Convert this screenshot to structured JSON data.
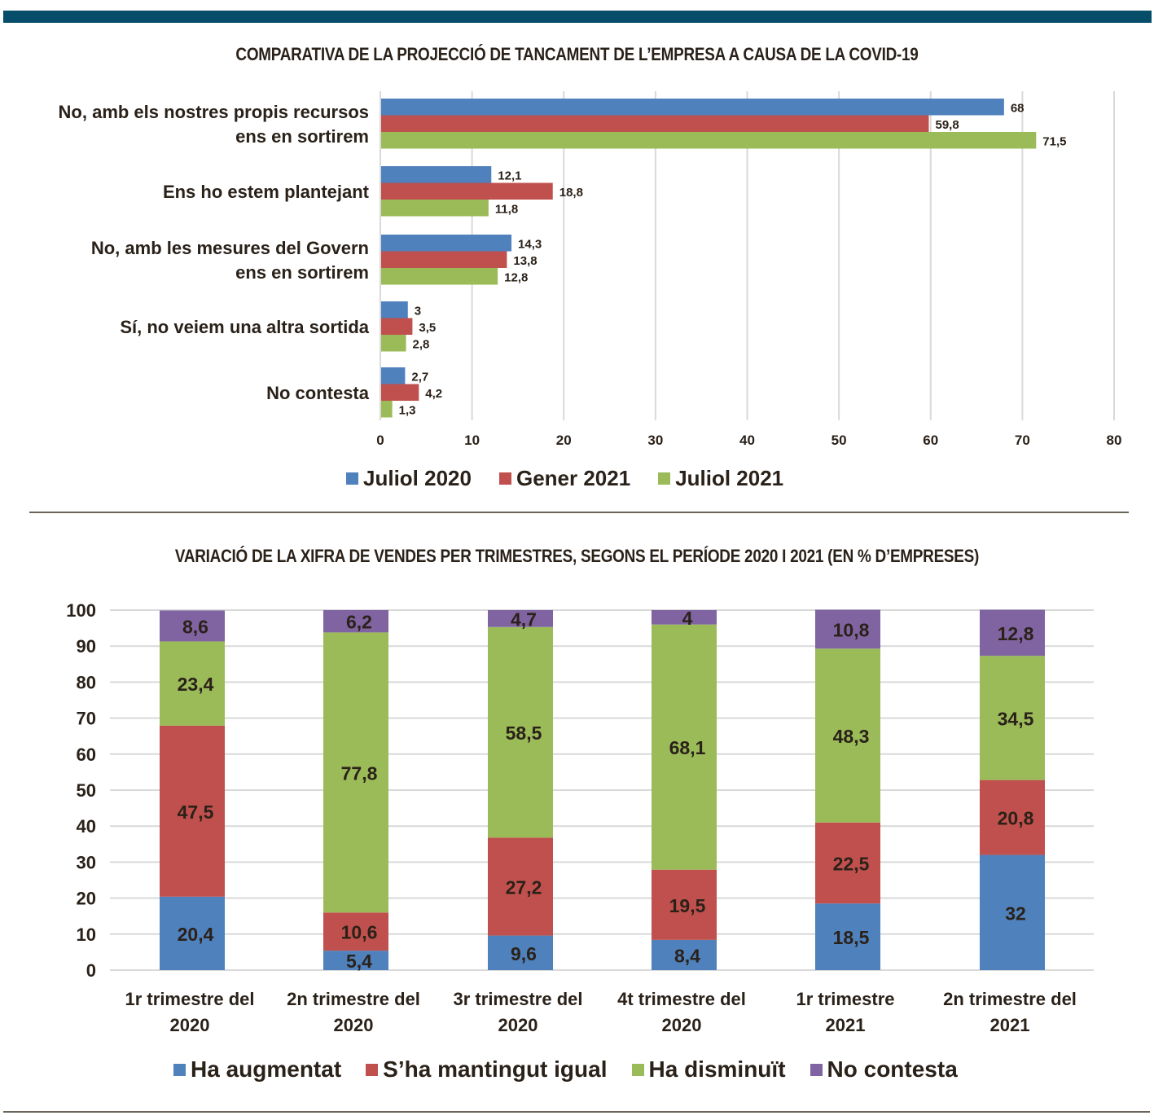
{
  "colors": {
    "header_bar": "#054d68",
    "blue": "#4f81bd",
    "red": "#c0504d",
    "green": "#9bbb59",
    "purple": "#8064a2",
    "grid": "#d9d9d9",
    "text": "#2a2119"
  },
  "chart_data": [
    {
      "type": "bar",
      "orientation": "horizontal",
      "title": "COMPARATIVA DE LA PROJECCIÓ DE TANCAMENT DE L’EMPRESA A CAUSA DE LA COVID-19",
      "categories": [
        [
          "No, amb els nostres propis recursos",
          "ens en sortirem"
        ],
        [
          "Ens ho estem plantejant"
        ],
        [
          "No, amb les mesures del Govern",
          "ens en sortirem"
        ],
        [
          "Sí, no veiem una altra sortida"
        ],
        [
          "No contesta"
        ]
      ],
      "series": [
        {
          "name": "Juliol 2020",
          "color": "#4f81bd",
          "values": [
            68,
            12.1,
            14.3,
            3,
            2.7
          ],
          "labels": [
            "68",
            "12,1",
            "14,3",
            "3",
            "2,7"
          ]
        },
        {
          "name": "Gener 2021",
          "color": "#c0504d",
          "values": [
            59.8,
            18.8,
            13.8,
            3.5,
            4.2
          ],
          "labels": [
            "59,8",
            "18,8",
            "13,8",
            "3,5",
            "4,2"
          ]
        },
        {
          "name": "Juliol 2021",
          "color": "#9bbb59",
          "values": [
            71.5,
            11.8,
            12.8,
            2.8,
            1.3
          ],
          "labels": [
            "71,5",
            "11,8",
            "12,8",
            "2,8",
            "1,3"
          ]
        }
      ],
      "xlim": [
        0,
        80
      ],
      "xticks": [
        "0",
        "10",
        "20",
        "30",
        "40",
        "50",
        "60",
        "70",
        "80"
      ],
      "grid": true,
      "legend_position": "bottom",
      "xlabel": "",
      "ylabel": ""
    },
    {
      "type": "bar",
      "stacked": true,
      "orientation": "vertical",
      "title": "VARIACIÓ DE LA XIFRA DE VENDES PER TRIMESTRES, SEGONS EL PERÍODE 2020 I 2021 (EN % D’EMPRESES)",
      "categories": [
        [
          "1r trimestre del",
          "2020"
        ],
        [
          "2n trimestre del",
          "2020"
        ],
        [
          "3r trimestre del",
          "2020"
        ],
        [
          "4t trimestre del",
          "2020"
        ],
        [
          "1r trimestre",
          "2021"
        ],
        [
          "2n trimestre del",
          "2021"
        ]
      ],
      "series": [
        {
          "name": "Ha augmentat",
          "color": "#4f81bd",
          "values": [
            20.4,
            5.4,
            9.6,
            8.4,
            18.5,
            32
          ],
          "labels": [
            "20,4",
            "5,4",
            "9,6",
            "8,4",
            "18,5",
            "32"
          ]
        },
        {
          "name": "S’ha mantingut igual",
          "color": "#c0504d",
          "values": [
            47.5,
            10.6,
            27.2,
            19.5,
            22.5,
            20.8
          ],
          "labels": [
            "47,5",
            "10,6",
            "27,2",
            "19,5",
            "22,5",
            "20,8"
          ]
        },
        {
          "name": "Ha disminuït",
          "color": "#9bbb59",
          "values": [
            23.4,
            77.8,
            58.5,
            68.1,
            48.3,
            34.5
          ],
          "labels": [
            "23,4",
            "77,8",
            "58,5",
            "68,1",
            "48,3",
            "34,5"
          ]
        },
        {
          "name": "No contesta",
          "color": "#8064a2",
          "values": [
            8.6,
            6.2,
            4.7,
            4,
            10.8,
            12.8
          ],
          "labels": [
            "8,6",
            "6,2",
            "4,7",
            "4",
            "10,8",
            "12,8"
          ]
        }
      ],
      "ylim": [
        0,
        100
      ],
      "yticks": [
        "0",
        "10",
        "20",
        "30",
        "40",
        "50",
        "60",
        "70",
        "80",
        "90",
        "100"
      ],
      "grid": true,
      "legend_position": "bottom",
      "xlabel": "",
      "ylabel": ""
    }
  ]
}
